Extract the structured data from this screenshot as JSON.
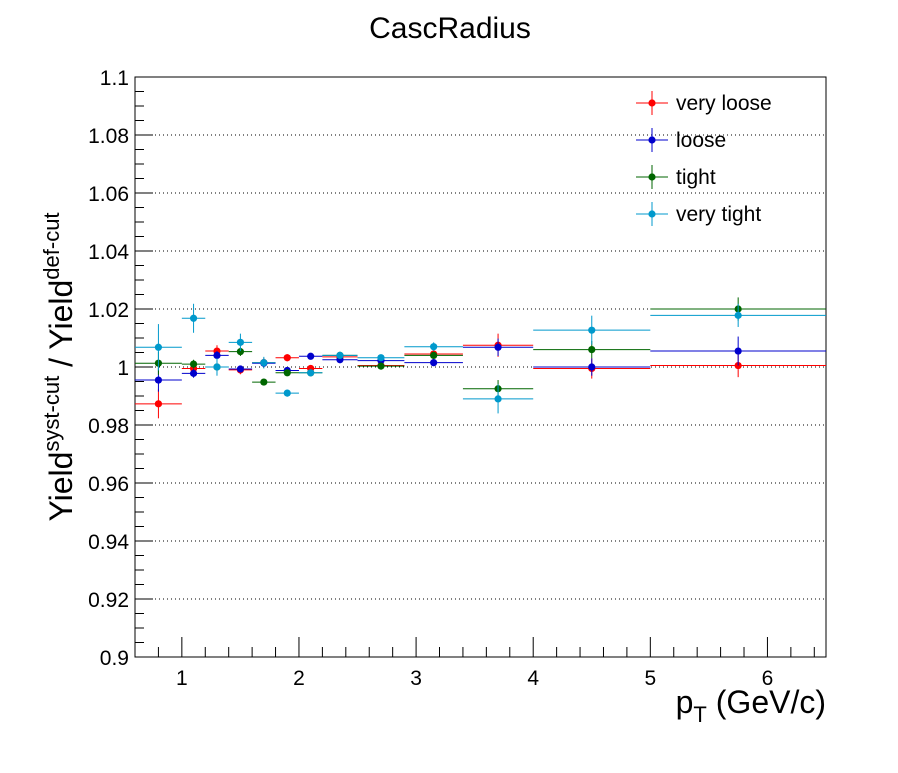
{
  "chart_data": {
    "type": "scatter",
    "title": "CascRadius",
    "xlabel": {
      "main": "p",
      "sub": "T",
      "rest": " (GeV/c)"
    },
    "ylabel": {
      "a": "Yield",
      "a_sup": "syst-cut",
      "sep": " / ",
      "b": "Yield",
      "b_sup": "def-cut"
    },
    "xlim": [
      0.6,
      6.5
    ],
    "ylim": [
      0.9,
      1.1
    ],
    "x_ticks": [
      1,
      2,
      3,
      4,
      5,
      6
    ],
    "y_ticks": [
      0.9,
      0.92,
      0.94,
      0.96,
      0.98,
      1,
      1.02,
      1.04,
      1.06,
      1.08,
      1.1
    ],
    "y_tick_labels": [
      "0.9",
      "0.92",
      "0.94",
      "0.96",
      "0.98",
      "1",
      "1.02",
      "1.04",
      "1.06",
      "1.08",
      "1.1"
    ],
    "grid": "horizontal dotted",
    "legend_position": "top-right",
    "series": [
      {
        "name": "very loose",
        "color": "#ff0000",
        "points": [
          {
            "x": 0.8,
            "xl": 0.6,
            "xh": 1.0,
            "y": 0.9873,
            "ey": 0.005
          },
          {
            "x": 1.1,
            "xl": 1.0,
            "xh": 1.2,
            "y": 0.9995,
            "ey": 0.002
          },
          {
            "x": 1.3,
            "xl": 1.2,
            "xh": 1.4,
            "y": 1.0055,
            "ey": 0.002
          },
          {
            "x": 1.5,
            "xl": 1.4,
            "xh": 1.6,
            "y": 0.999,
            "ey": 0.0015
          },
          {
            "x": 1.7,
            "xl": 1.6,
            "xh": 1.8,
            "y": 1.0015,
            "ey": 0.0015
          },
          {
            "x": 1.9,
            "xl": 1.8,
            "xh": 2.0,
            "y": 1.0032,
            "ey": 0.0012
          },
          {
            "x": 2.1,
            "xl": 2.0,
            "xh": 2.2,
            "y": 0.9995,
            "ey": 0.0012
          },
          {
            "x": 2.35,
            "xl": 2.2,
            "xh": 2.5,
            "y": 1.0035,
            "ey": 0.001
          },
          {
            "x": 2.7,
            "xl": 2.5,
            "xh": 2.9,
            "y": 1.0005,
            "ey": 0.001
          },
          {
            "x": 3.15,
            "xl": 2.9,
            "xh": 3.4,
            "y": 1.0045,
            "ey": 0.0012
          },
          {
            "x": 3.7,
            "xl": 3.4,
            "xh": 4.0,
            "y": 1.0075,
            "ey": 0.004
          },
          {
            "x": 4.5,
            "xl": 4.0,
            "xh": 5.0,
            "y": 0.9995,
            "ey": 0.0035
          },
          {
            "x": 5.75,
            "xl": 5.0,
            "xh": 6.5,
            "y": 1.0005,
            "ey": 0.004
          }
        ]
      },
      {
        "name": "loose",
        "color": "#0000cc",
        "points": [
          {
            "x": 0.8,
            "xl": 0.6,
            "xh": 1.0,
            "y": 0.9955,
            "ey": 0.004
          },
          {
            "x": 1.1,
            "xl": 1.0,
            "xh": 1.2,
            "y": 0.9978,
            "ey": 0.0015
          },
          {
            "x": 1.3,
            "xl": 1.2,
            "xh": 1.4,
            "y": 1.004,
            "ey": 0.0015
          },
          {
            "x": 1.5,
            "xl": 1.4,
            "xh": 1.6,
            "y": 0.9993,
            "ey": 0.0012
          },
          {
            "x": 1.7,
            "xl": 1.6,
            "xh": 1.8,
            "y": 1.0013,
            "ey": 0.0012
          },
          {
            "x": 1.9,
            "xl": 1.8,
            "xh": 2.0,
            "y": 0.9988,
            "ey": 0.001
          },
          {
            "x": 2.1,
            "xl": 2.0,
            "xh": 2.2,
            "y": 1.0037,
            "ey": 0.001
          },
          {
            "x": 2.35,
            "xl": 2.2,
            "xh": 2.5,
            "y": 1.0025,
            "ey": 0.001
          },
          {
            "x": 2.7,
            "xl": 2.5,
            "xh": 2.9,
            "y": 1.0022,
            "ey": 0.001
          },
          {
            "x": 3.15,
            "xl": 2.9,
            "xh": 3.4,
            "y": 1.0015,
            "ey": 0.0012
          },
          {
            "x": 3.7,
            "xl": 3.4,
            "xh": 4.0,
            "y": 1.0068,
            "ey": 0.003
          },
          {
            "x": 4.5,
            "xl": 4.0,
            "xh": 5.0,
            "y": 1.0,
            "ey": 0.003
          },
          {
            "x": 5.75,
            "xl": 5.0,
            "xh": 6.5,
            "y": 1.0055,
            "ey": 0.005
          }
        ]
      },
      {
        "name": "tight",
        "color": "#006600",
        "points": [
          {
            "x": 0.8,
            "xl": 0.6,
            "xh": 1.0,
            "y": 1.0013,
            "ey": 0.004
          },
          {
            "x": 1.1,
            "xl": 1.0,
            "xh": 1.2,
            "y": 1.001,
            "ey": 0.0015
          },
          {
            "x": 1.3,
            "xl": 1.2,
            "xh": 1.4,
            "y": 1.0,
            "ey": 0.0015
          },
          {
            "x": 1.5,
            "xl": 1.4,
            "xh": 1.6,
            "y": 1.0053,
            "ey": 0.0015
          },
          {
            "x": 1.7,
            "xl": 1.6,
            "xh": 1.8,
            "y": 0.9948,
            "ey": 0.001
          },
          {
            "x": 1.9,
            "xl": 1.8,
            "xh": 2.0,
            "y": 0.998,
            "ey": 0.001
          },
          {
            "x": 2.1,
            "xl": 2.0,
            "xh": 2.2,
            "y": 0.998,
            "ey": 0.001
          },
          {
            "x": 2.35,
            "xl": 2.2,
            "xh": 2.5,
            "y": 1.004,
            "ey": 0.001
          },
          {
            "x": 2.7,
            "xl": 2.5,
            "xh": 2.9,
            "y": 1.0003,
            "ey": 0.001
          },
          {
            "x": 3.15,
            "xl": 2.9,
            "xh": 3.4,
            "y": 1.004,
            "ey": 0.0012
          },
          {
            "x": 3.7,
            "xl": 3.4,
            "xh": 4.0,
            "y": 0.9925,
            "ey": 0.003
          },
          {
            "x": 4.5,
            "xl": 4.0,
            "xh": 5.0,
            "y": 1.006,
            "ey": 0.003
          },
          {
            "x": 5.75,
            "xl": 5.0,
            "xh": 6.5,
            "y": 1.02,
            "ey": 0.004
          }
        ]
      },
      {
        "name": "very tight",
        "color": "#0099cc",
        "points": [
          {
            "x": 0.8,
            "xl": 0.6,
            "xh": 1.0,
            "y": 1.0068,
            "ey": 0.008
          },
          {
            "x": 1.1,
            "xl": 1.0,
            "xh": 1.2,
            "y": 1.0168,
            "ey": 0.005
          },
          {
            "x": 1.3,
            "xl": 1.2,
            "xh": 1.4,
            "y": 1.0,
            "ey": 0.003
          },
          {
            "x": 1.5,
            "xl": 1.4,
            "xh": 1.6,
            "y": 1.0085,
            "ey": 0.003
          },
          {
            "x": 1.7,
            "xl": 1.6,
            "xh": 1.8,
            "y": 1.0015,
            "ey": 0.002
          },
          {
            "x": 1.9,
            "xl": 1.8,
            "xh": 2.0,
            "y": 0.991,
            "ey": 0.0012
          },
          {
            "x": 2.1,
            "xl": 2.0,
            "xh": 2.2,
            "y": 0.998,
            "ey": 0.0012
          },
          {
            "x": 2.35,
            "xl": 2.2,
            "xh": 2.5,
            "y": 1.004,
            "ey": 0.0012
          },
          {
            "x": 2.7,
            "xl": 2.5,
            "xh": 2.9,
            "y": 1.0032,
            "ey": 0.001
          },
          {
            "x": 3.15,
            "xl": 2.9,
            "xh": 3.4,
            "y": 1.007,
            "ey": 0.0015
          },
          {
            "x": 3.7,
            "xl": 3.4,
            "xh": 4.0,
            "y": 0.989,
            "ey": 0.005
          },
          {
            "x": 4.5,
            "xl": 4.0,
            "xh": 5.0,
            "y": 1.0127,
            "ey": 0.005
          },
          {
            "x": 5.75,
            "xl": 5.0,
            "xh": 6.5,
            "y": 1.0178,
            "ey": 0.004
          }
        ]
      }
    ]
  }
}
